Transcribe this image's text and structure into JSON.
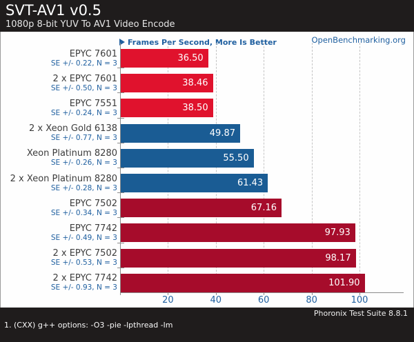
{
  "header": {
    "title": "SVT-AV1 v0.5",
    "subtitle": "1080p 8-bit YUV To AV1 Video Encode"
  },
  "legend": {
    "label": "Frames Per Second, More Is Better",
    "site": "OpenBenchmarking.org"
  },
  "chart_data": {
    "type": "bar",
    "orientation": "horizontal",
    "title": "SVT-AV1 v0.5",
    "subtitle": "1080p 8-bit YUV To AV1 Video Encode",
    "value_label": "Frames Per Second, More Is Better",
    "xlim": [
      0,
      118
    ],
    "x_ticks": [
      20,
      40,
      60,
      80,
      100
    ],
    "grid": true,
    "rows": [
      {
        "label": "EPYC 7601",
        "se": "SE +/- 0.22, N = 3",
        "value": 36.5,
        "display": "36.50",
        "color": "#e0122d"
      },
      {
        "label": "2 x EPYC 7601",
        "se": "SE +/- 0.50, N = 3",
        "value": 38.46,
        "display": "38.46",
        "color": "#e0122d"
      },
      {
        "label": "EPYC 7551",
        "se": "SE +/- 0.24, N = 3",
        "value": 38.5,
        "display": "38.50",
        "color": "#e0122d"
      },
      {
        "label": "2 x Xeon Gold 6138",
        "se": "SE +/- 0.77, N = 3",
        "value": 49.87,
        "display": "49.87",
        "color": "#1a5c94"
      },
      {
        "label": "Xeon Platinum 8280",
        "se": "SE +/- 0.26, N = 3",
        "value": 55.5,
        "display": "55.50",
        "color": "#1a5c94"
      },
      {
        "label": "2 x Xeon Platinum 8280",
        "se": "SE +/- 0.28, N = 3",
        "value": 61.43,
        "display": "61.43",
        "color": "#1a5c94"
      },
      {
        "label": "EPYC 7502",
        "se": "SE +/- 0.34, N = 3",
        "value": 67.16,
        "display": "67.16",
        "color": "#a60c2b"
      },
      {
        "label": "EPYC 7742",
        "se": "SE +/- 0.49, N = 3",
        "value": 97.93,
        "display": "97.93",
        "color": "#a60c2b"
      },
      {
        "label": "2 x EPYC 7502",
        "se": "SE +/- 0.53, N = 3",
        "value": 98.17,
        "display": "98.17",
        "color": "#a60c2b"
      },
      {
        "label": "2 x EPYC 7742",
        "se": "SE +/- 0.93, N = 3",
        "value": 101.9,
        "display": "101.90",
        "color": "#a60c2b"
      }
    ],
    "colors": {
      "amd_old": "#e0122d",
      "intel": "#1a5c94",
      "amd_new": "#a60c2b",
      "accent_text": "#2060a0"
    }
  },
  "footer": {
    "suite": "Phoronix Test Suite 8.8.1",
    "notes": "1. (CXX) g++ options: -O3 -pie -lpthread -lm"
  }
}
